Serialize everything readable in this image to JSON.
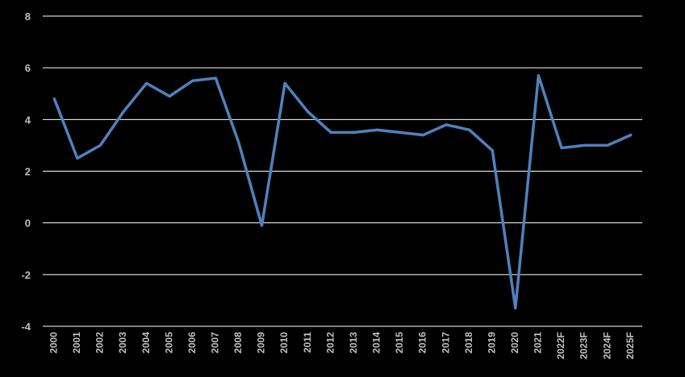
{
  "chart_data": {
    "type": "line",
    "title": "",
    "xlabel": "",
    "ylabel": "",
    "ylim": [
      -4,
      8
    ],
    "yticks": [
      -4,
      -2,
      0,
      2,
      4,
      6,
      8
    ],
    "ytick_labels": [
      "-4",
      "-2",
      "0",
      "2",
      "4",
      "6",
      "8"
    ],
    "grid": "horizontal",
    "legend": "none",
    "categories": [
      "2000",
      "2001",
      "2002",
      "2003",
      "2004",
      "2005",
      "2006",
      "2007",
      "2008",
      "2009",
      "2010",
      "2011",
      "2012",
      "2013",
      "2014",
      "2015",
      "2016",
      "2017",
      "2018",
      "2019",
      "2020",
      "2021",
      "2022F",
      "2023F",
      "2024F",
      "2025F"
    ],
    "series": [
      {
        "values": [
          4.8,
          2.5,
          3.0,
          4.3,
          5.4,
          4.9,
          5.5,
          5.6,
          3.1,
          -0.1,
          5.4,
          4.3,
          3.5,
          3.5,
          3.6,
          3.5,
          3.4,
          3.8,
          3.6,
          2.8,
          -3.3,
          5.7,
          2.9,
          3.0,
          3.0,
          3.4
        ],
        "color": "#4F81BD"
      }
    ],
    "colors": {
      "background": "#000000",
      "grid": "#FFFFFF",
      "axis_text": "#BFBFBF",
      "line": "#4F81BD"
    }
  }
}
